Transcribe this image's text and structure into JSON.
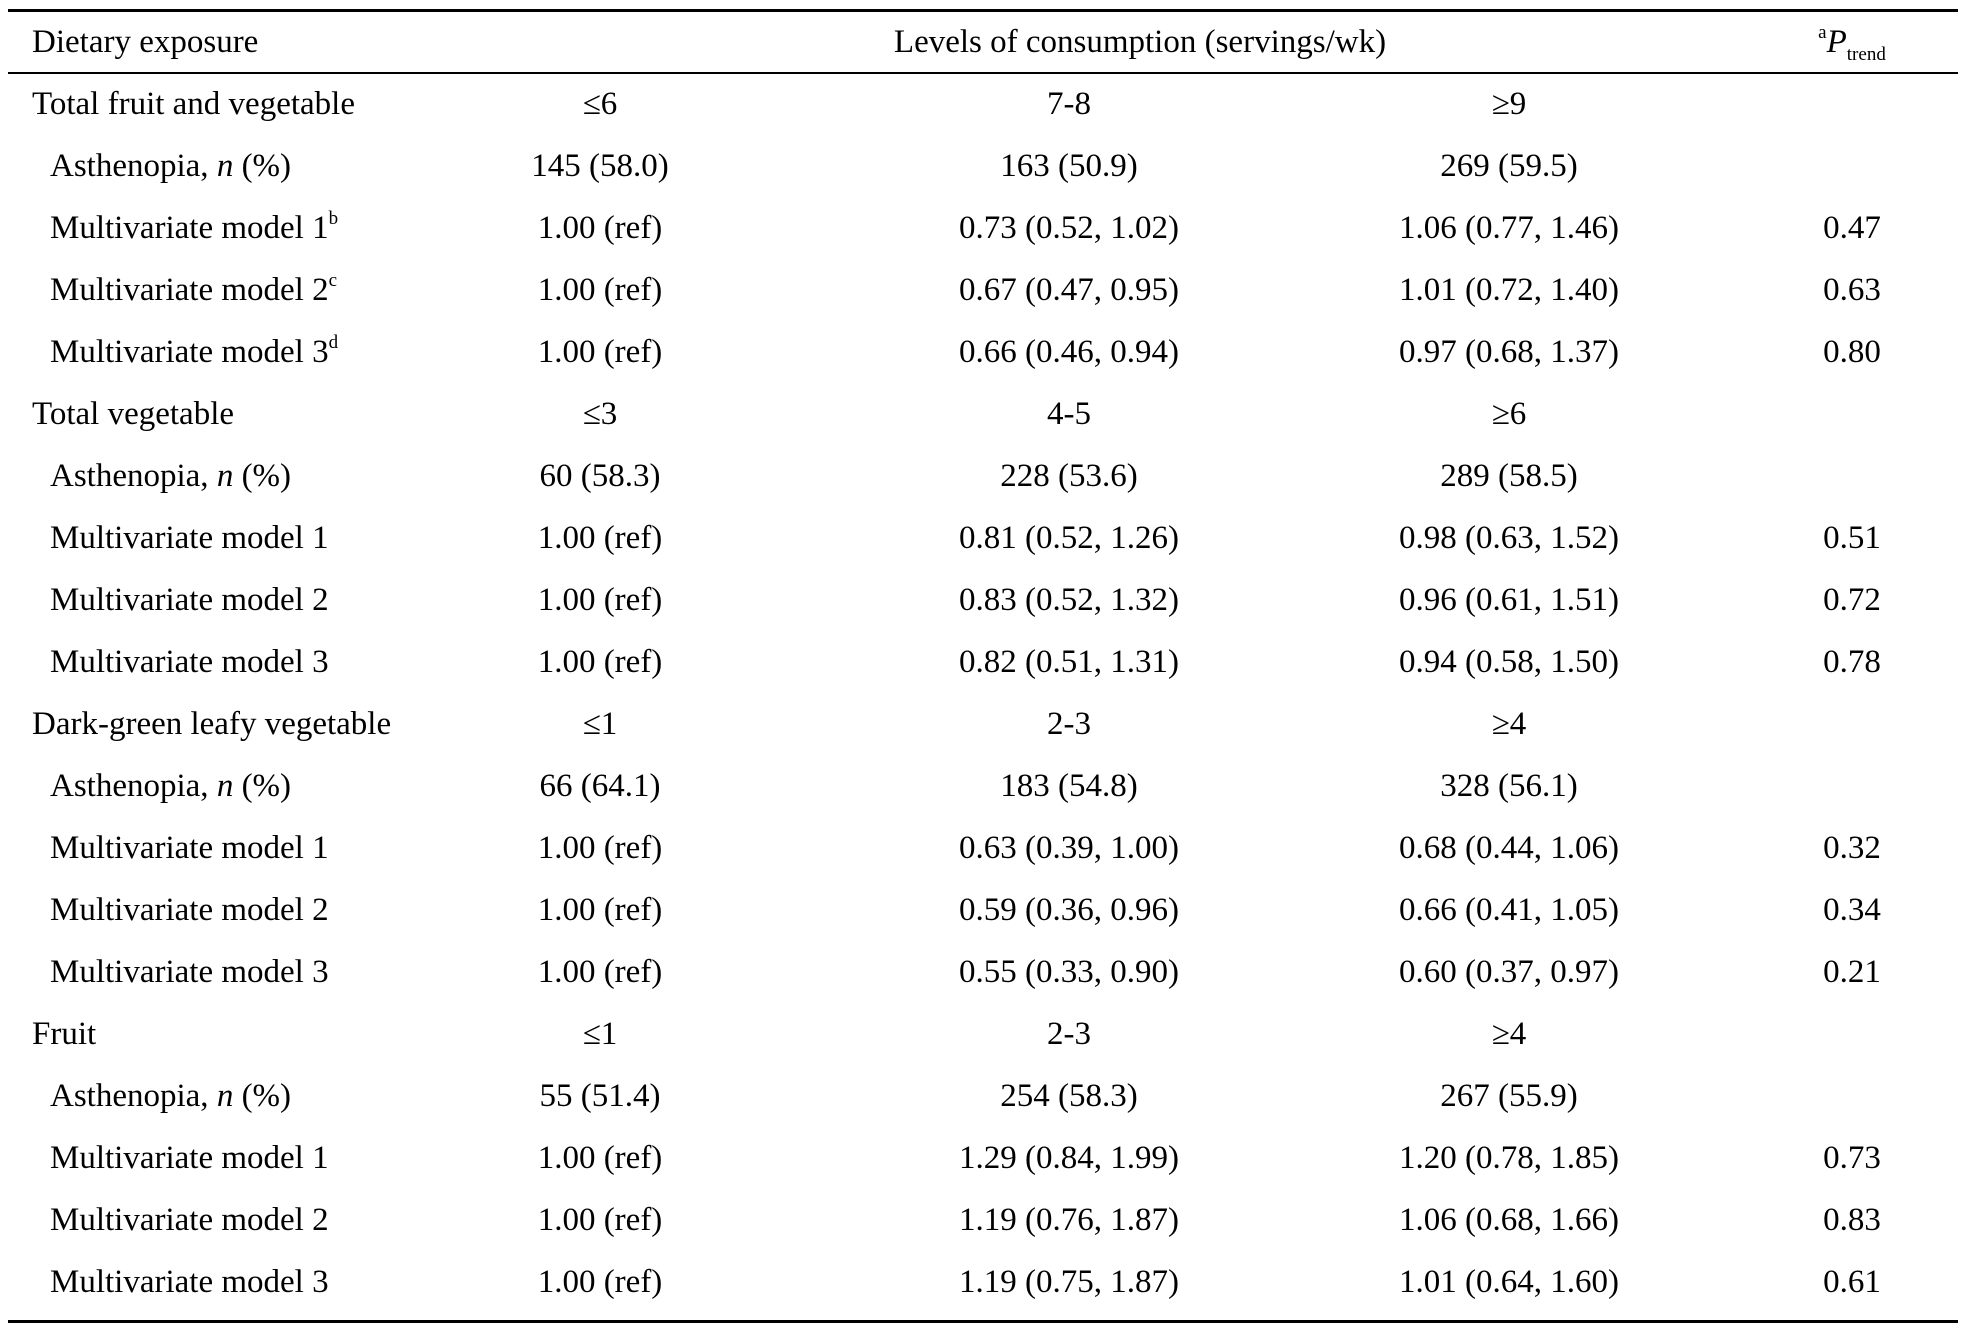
{
  "header": {
    "col_exposure": "Dietary exposure",
    "col_levels": "Levels of consumption (servings/wk)",
    "col_ptrend_sup": "a",
    "col_ptrend_main": "P",
    "col_ptrend_sub": "trend"
  },
  "labels": {
    "asthenopia_prefix": "Asthenopia, ",
    "asthenopia_n": "n",
    "asthenopia_suffix": " (%)",
    "model1": "Multivariate model 1",
    "model2": "Multivariate model 2",
    "model3": "Multivariate model 3",
    "model1_sup": "b",
    "model2_sup": "c",
    "model3_sup": "d"
  },
  "groups": [
    {
      "name": "Total fruit and vegetable",
      "levels": [
        "≤6",
        "7-8",
        "≥9"
      ],
      "asthenopia": [
        "145 (58.0)",
        "163 (50.9)",
        "269 (59.5)"
      ],
      "model1": [
        "1.00 (ref)",
        "0.73 (0.52, 1.02)",
        "1.06 (0.77, 1.46)",
        "0.47"
      ],
      "model2": [
        "1.00 (ref)",
        "0.67 (0.47, 0.95)",
        "1.01 (0.72, 1.40)",
        "0.63"
      ],
      "model3": [
        "1.00 (ref)",
        "0.66 (0.46, 0.94)",
        "0.97 (0.68, 1.37)",
        "0.80"
      ]
    },
    {
      "name": "Total vegetable",
      "levels": [
        "≤3",
        "4-5",
        "≥6"
      ],
      "asthenopia": [
        "60 (58.3)",
        "228 (53.6)",
        "289 (58.5)"
      ],
      "model1": [
        "1.00 (ref)",
        "0.81 (0.52, 1.26)",
        "0.98 (0.63, 1.52)",
        "0.51"
      ],
      "model2": [
        "1.00 (ref)",
        "0.83 (0.52, 1.32)",
        "0.96 (0.61, 1.51)",
        "0.72"
      ],
      "model3": [
        "1.00 (ref)",
        "0.82 (0.51, 1.31)",
        "0.94 (0.58, 1.50)",
        "0.78"
      ]
    },
    {
      "name": "Dark-green leafy vegetable",
      "levels": [
        "≤1",
        "2-3",
        "≥4"
      ],
      "asthenopia": [
        "66 (64.1)",
        "183 (54.8)",
        "328 (56.1)"
      ],
      "model1": [
        "1.00 (ref)",
        "0.63 (0.39, 1.00)",
        "0.68 (0.44, 1.06)",
        "0.32"
      ],
      "model2": [
        "1.00 (ref)",
        "0.59 (0.36, 0.96)",
        "0.66 (0.41, 1.05)",
        "0.34"
      ],
      "model3": [
        "1.00 (ref)",
        "0.55 (0.33, 0.90)",
        "0.60 (0.37, 0.97)",
        "0.21"
      ]
    },
    {
      "name": "Fruit",
      "levels": [
        "≤1",
        "2-3",
        "≥4"
      ],
      "asthenopia": [
        "55 (51.4)",
        "254 (58.3)",
        "267 (55.9)"
      ],
      "model1": [
        "1.00 (ref)",
        "1.29 (0.84, 1.99)",
        "1.20 (0.78, 1.85)",
        "0.73"
      ],
      "model2": [
        "1.00 (ref)",
        "1.19 (0.76, 1.87)",
        "1.06 (0.68, 1.66)",
        "0.83"
      ],
      "model3": [
        "1.00 (ref)",
        "1.19 (0.75, 1.87)",
        "1.01 (0.64, 1.60)",
        "0.61"
      ]
    }
  ]
}
